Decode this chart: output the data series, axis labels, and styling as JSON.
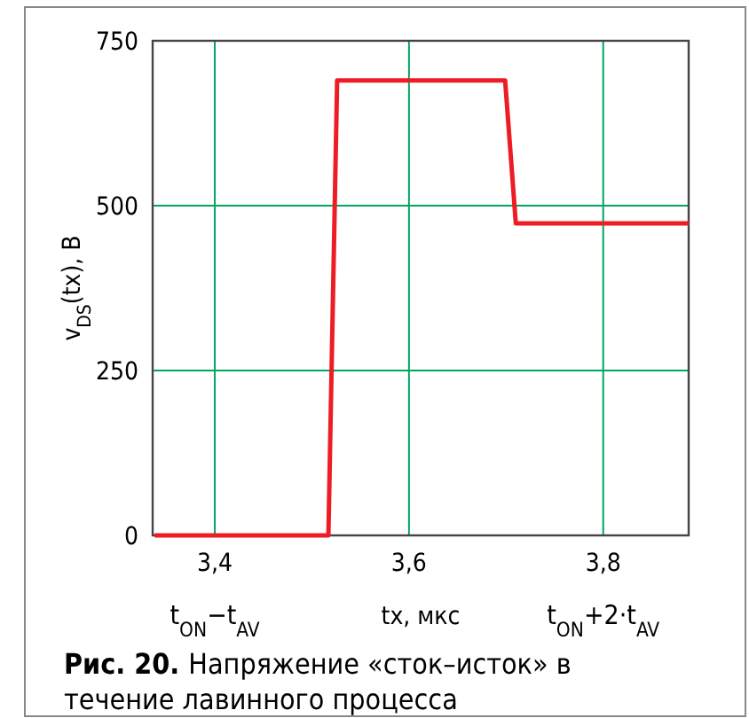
{
  "chart_data": {
    "type": "line",
    "title": "Рис. 20. Напряжение «сток–исток» в течение лавинного процесса",
    "xlabel": "tx, мкс",
    "ylabel": "v$_{DS}$(tx), В",
    "x": [
      3.338,
      3.517,
      3.526,
      3.699,
      3.71,
      3.888
    ],
    "series": [
      {
        "color": "#ee1c25",
        "values": [
          0,
          0,
          690,
          690,
          473,
          473
        ]
      }
    ],
    "xlim": [
      3.336,
      3.888
    ],
    "xticks": [
      {
        "value": 3.4,
        "label": "3,4"
      },
      {
        "value": 3.6,
        "label": "3,6"
      },
      {
        "value": 3.8,
        "label": "3,8"
      }
    ],
    "ylim": [
      0,
      750
    ],
    "yticks": [
      0,
      250,
      500,
      750
    ],
    "grid": true,
    "marker": "none",
    "line_style": "solid",
    "annotations": [
      "t$_{ON}$−t$_{AV}$",
      "t$_{ON}$+2·t$_{AV}$"
    ]
  }
}
